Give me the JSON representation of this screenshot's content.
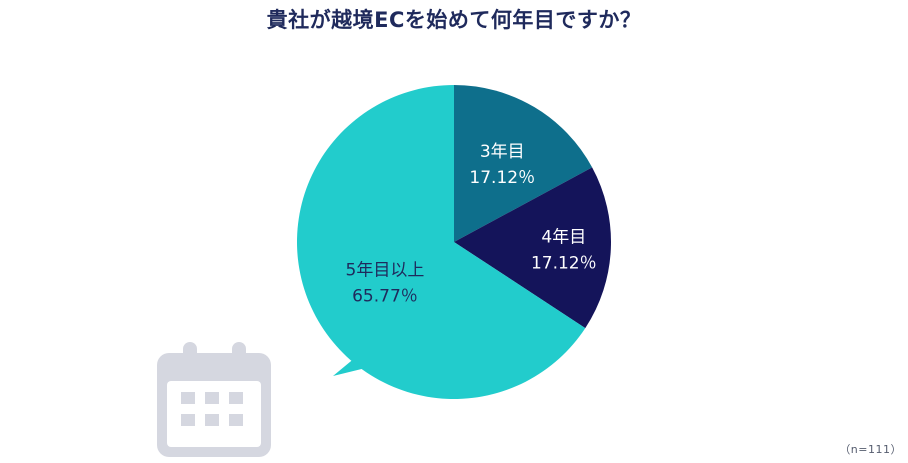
{
  "title": "貴社が越境ECを始めて何年目ですか？",
  "sample_size": "（n=111）",
  "decoration": {
    "icon": "calendar-icon",
    "color": "#d5d7e0"
  },
  "chart_data": {
    "type": "pie",
    "title": "貴社が越境ECを始めて何年目ですか？",
    "start": "12 o'clock",
    "direction": "clockwise",
    "slices": [
      {
        "label": "3年目",
        "value": 17.12,
        "value_text": "17.12％",
        "color": "#0e6f8c",
        "text_color": "#ffffff"
      },
      {
        "label": "4年目",
        "value": 17.12,
        "value_text": "17.12％",
        "color": "#14145a",
        "text_color": "#ffffff"
      },
      {
        "label": "5年目以上",
        "value": 65.77,
        "value_text": "65.77％",
        "color": "#22cccc",
        "text_color": "#1f2a5c"
      }
    ]
  }
}
